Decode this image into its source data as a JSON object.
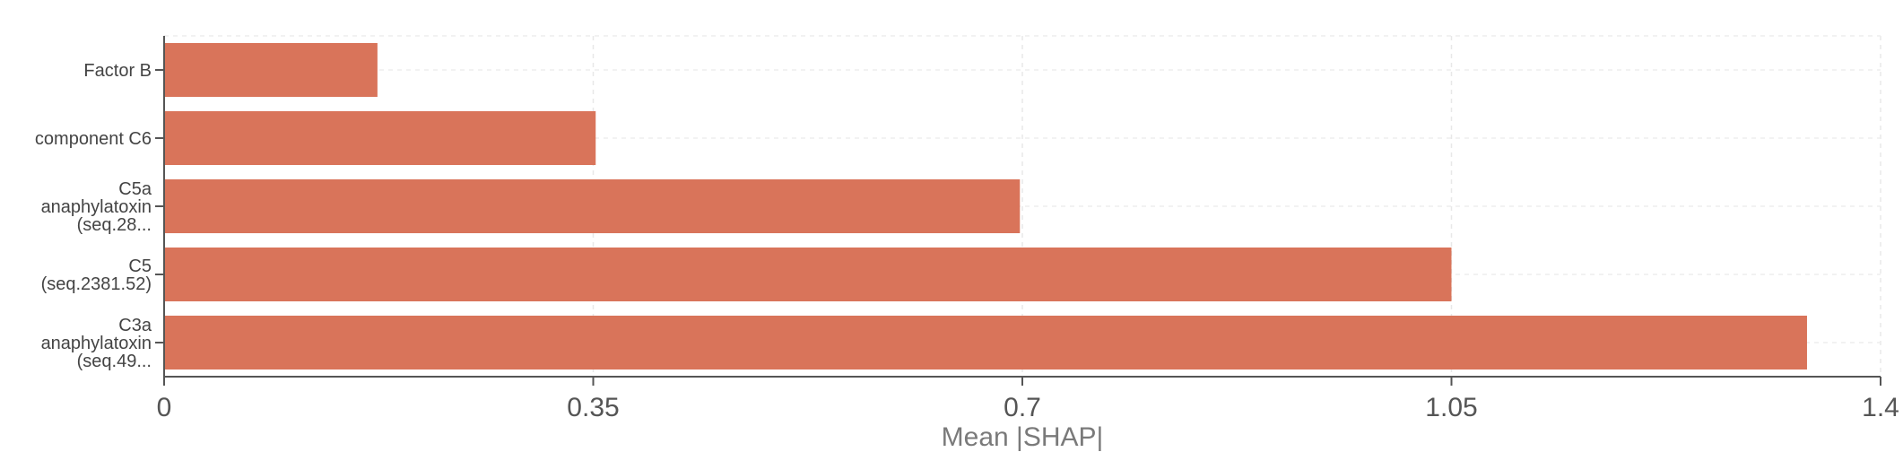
{
  "chart_data": {
    "type": "bar",
    "orientation": "horizontal",
    "categories": [
      [
        "Factor B"
      ],
      [
        "component C6"
      ],
      [
        "C5a",
        "anaphylatoxin",
        "(seq.28..."
      ],
      [
        "C5",
        "(seq.2381.52)"
      ],
      [
        "C3a",
        "anaphylatoxin",
        "(seq.49..."
      ]
    ],
    "values": [
      0.174,
      0.352,
      0.698,
      1.05,
      1.34
    ],
    "xlabel": "Mean |SHAP|",
    "xticks": [
      "0",
      "0.35",
      "0.7",
      "1.05",
      "1.4"
    ],
    "xlim": [
      0,
      1.4
    ],
    "grid": true,
    "bar_color": "#d9745a"
  }
}
